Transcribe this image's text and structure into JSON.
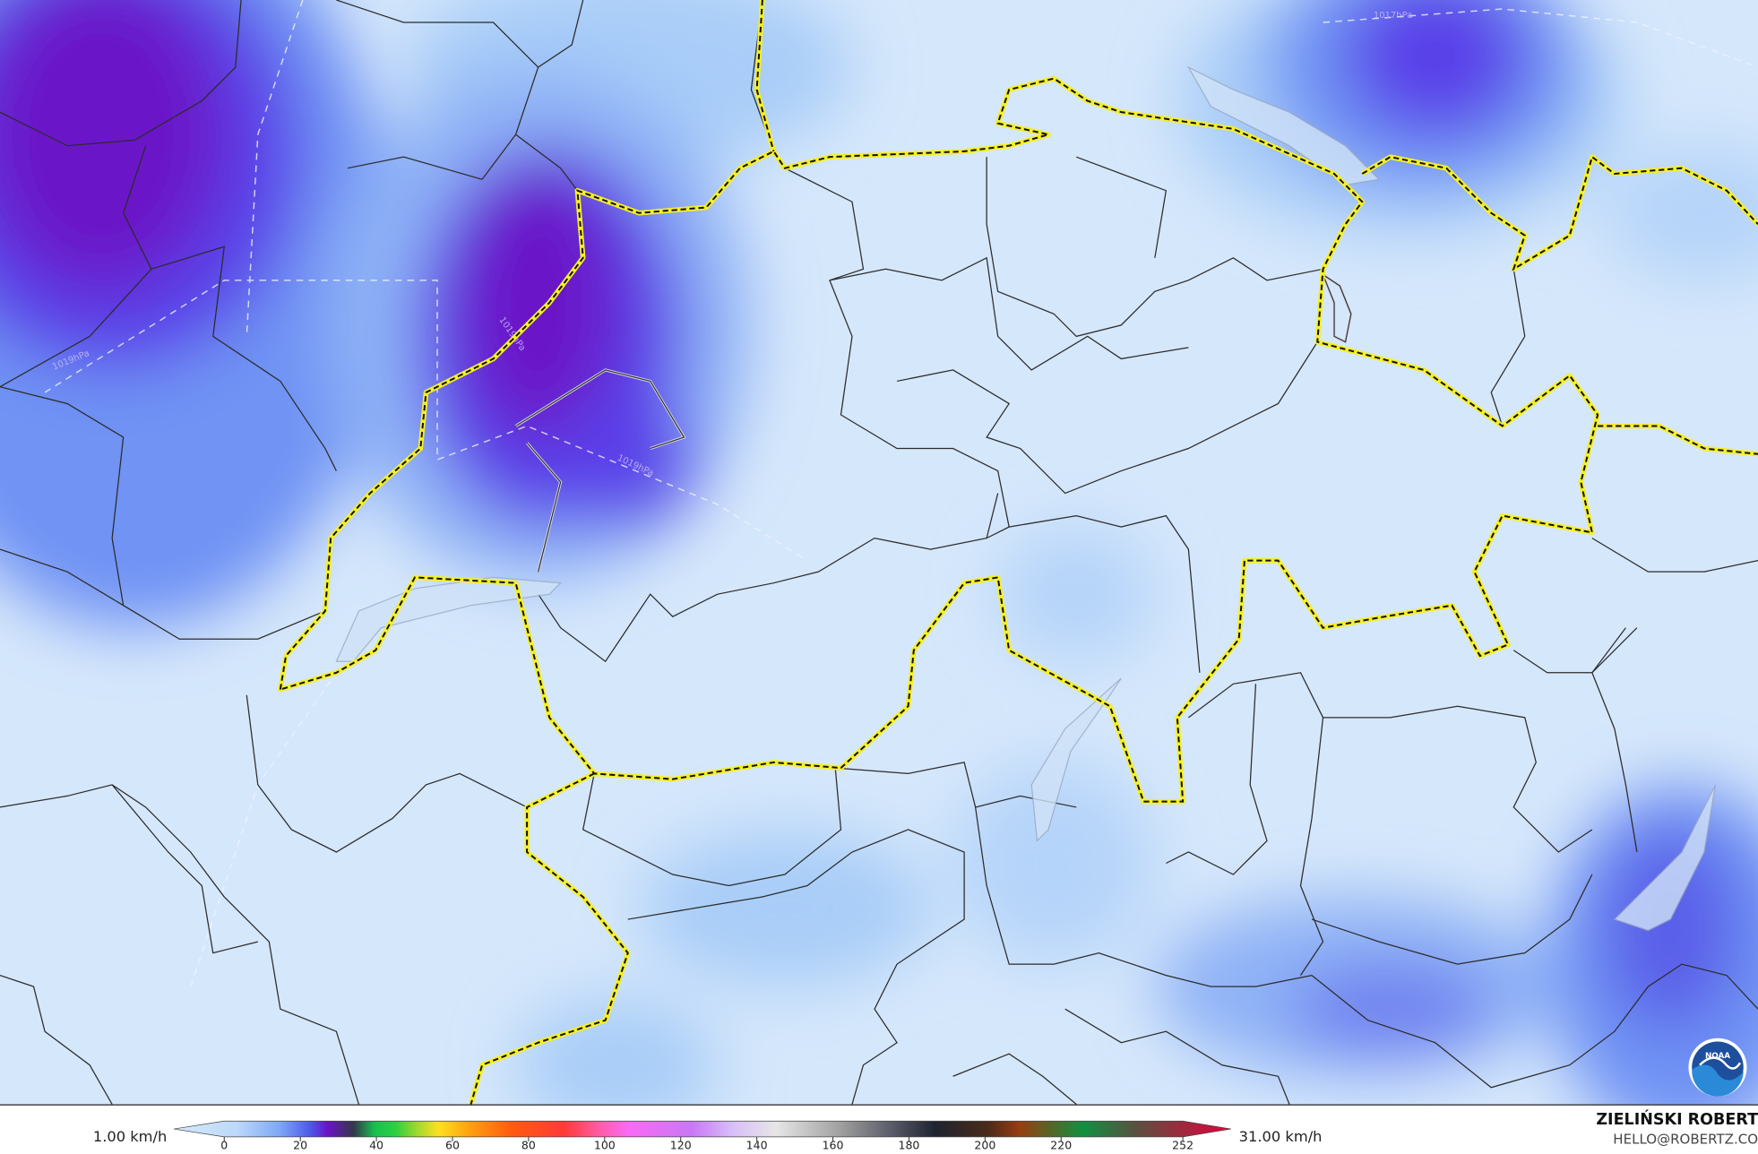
{
  "map": {
    "variable_unit": "km/h",
    "isobar_labels": [
      "1019hPa",
      "1019hPa",
      "1019hPa",
      "1017hPa"
    ],
    "colors": {
      "background": "#d5e7fb",
      "light_blue": "#a9cdf8",
      "blue": "#6f93f4",
      "violet": "#5a3fe9",
      "purple": "#6a14c8",
      "border": "#2b2b2b",
      "country_border": "#f5ef2a"
    }
  },
  "legend": {
    "min_label": "1.00 km/h",
    "max_label": "31.00 km/h",
    "ticks": [
      "0",
      "20",
      "40",
      "60",
      "80",
      "100",
      "120",
      "140",
      "160",
      "180",
      "200",
      "220",
      "252"
    ],
    "scale_max": 252
  },
  "credit": {
    "name": "ZIELIŃSKI ROBERT",
    "email": "HELLO@ROBERTZ.CO",
    "logo": "NOAA"
  }
}
